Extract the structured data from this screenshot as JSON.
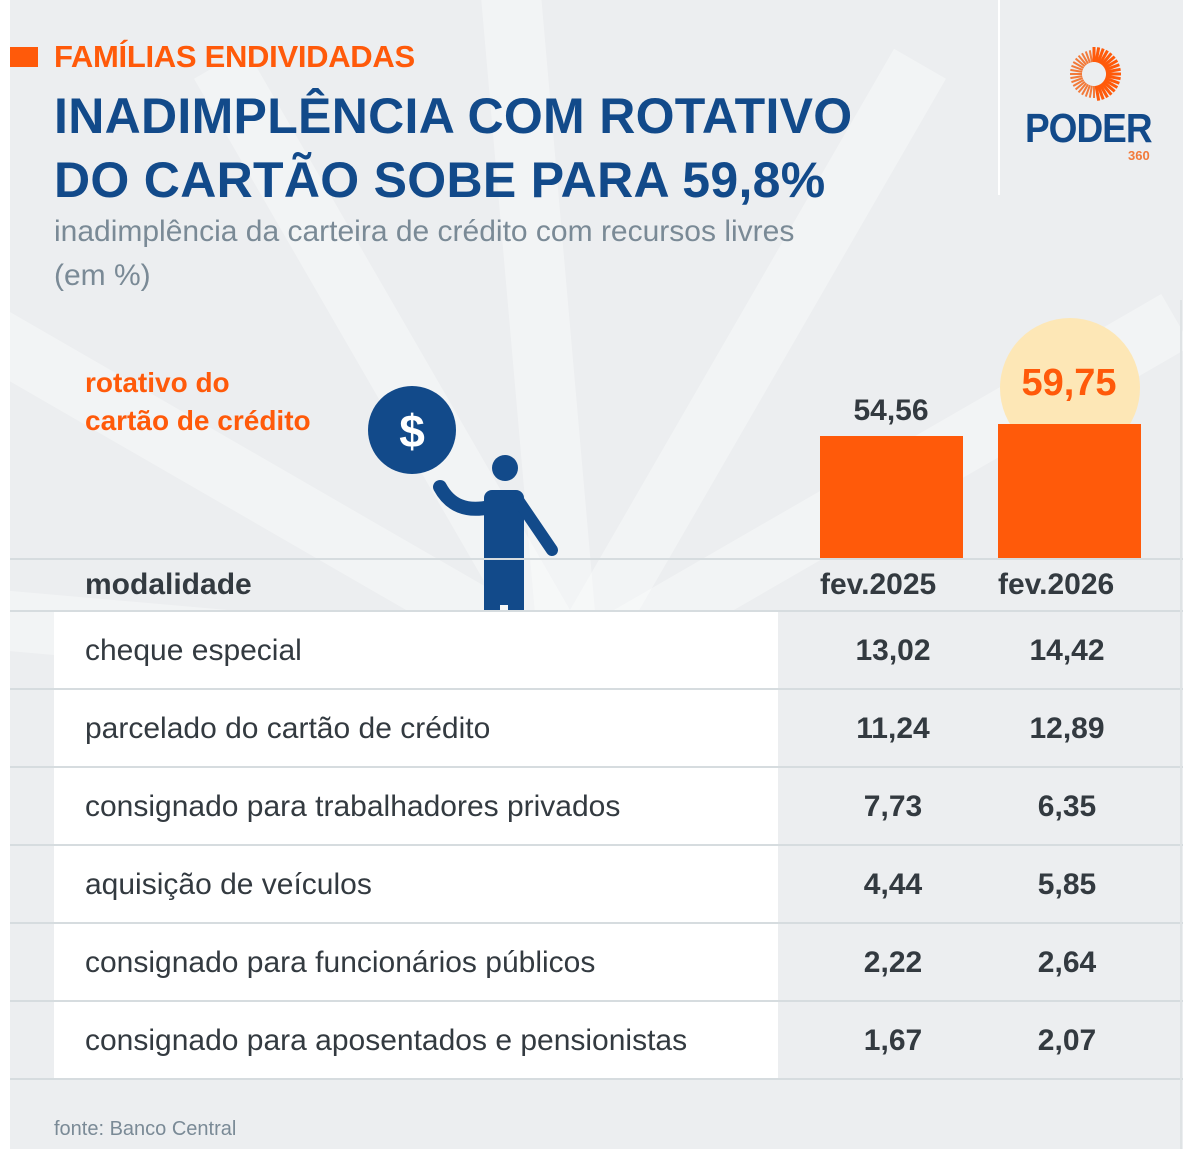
{
  "header": {
    "kicker": "FAMÍLIAS ENDIVIDADAS",
    "title_line1": "INADIMPLÊNCIA COM ROTATIVO",
    "title_line2": "DO CARTÃO SOBE PARA 59,8%",
    "subtitle_line1": "inadimplência da carteira de crédito com recursos livres",
    "subtitle_line2": "(em %)"
  },
  "logo": {
    "word": "PODER",
    "sub": "360",
    "icon": "sunburst-icon"
  },
  "colors": {
    "accent": "#ff5a0a",
    "brand_blue": "#124a8a",
    "highlight": "#fde7b6",
    "text": "#333a40",
    "muted": "#7a8a96",
    "background": "#eceef0"
  },
  "illustration": {
    "label_line1": "rotativo do",
    "label_line2": "cartão de crédito",
    "icon": "person-holding-coin-icon",
    "coin_symbol": "$"
  },
  "chart_data": {
    "type": "bar",
    "title": "rotativo do cartão de crédito",
    "categories": [
      "fev.2025",
      "fev.2026"
    ],
    "values": [
      54.56,
      59.75
    ],
    "value_labels": [
      "54,56",
      "59,75"
    ],
    "highlighted_index": 1,
    "ylim": [
      0,
      60
    ],
    "grid": false,
    "unit": "%"
  },
  "table": {
    "headers": [
      "modalidade",
      "fev.2025",
      "fev.2026"
    ],
    "rows": [
      {
        "label": "cheque especial",
        "v2025": "13,02",
        "v2026": "14,42"
      },
      {
        "label": "parcelado do cartão de crédito",
        "v2025": "11,24",
        "v2026": "12,89"
      },
      {
        "label": "consignado para trabalhadores privados",
        "v2025": "7,73",
        "v2026": "6,35"
      },
      {
        "label": "aquisição de veículos",
        "v2025": "4,44",
        "v2026": "5,85"
      },
      {
        "label": "consignado para funcionários públicos",
        "v2025": "2,22",
        "v2026": "2,64"
      },
      {
        "label": "consignado para aposentados e pensionistas",
        "v2025": "1,67",
        "v2026": "2,07"
      }
    ]
  },
  "footer": {
    "source": "fonte: Banco Central"
  }
}
